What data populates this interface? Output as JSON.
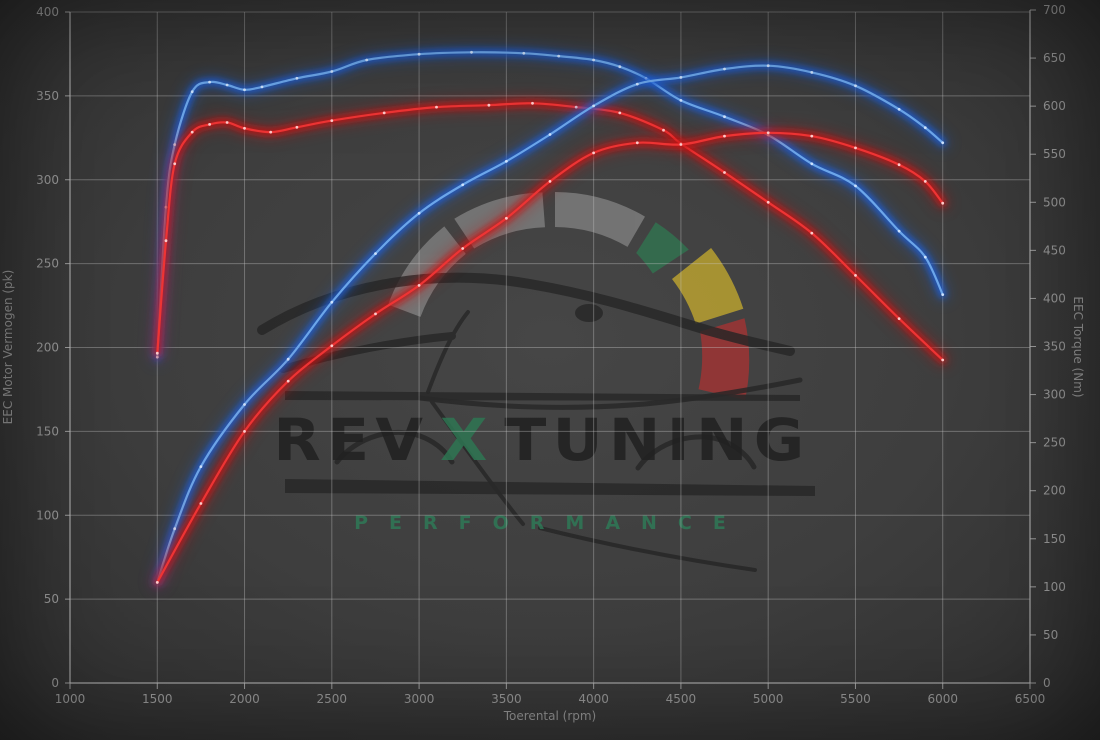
{
  "page": {
    "background": "#3e3e3e"
  },
  "axes": {
    "x": {
      "label": "Toerental (rpm)",
      "min": 1000,
      "max": 6500,
      "step": 500
    },
    "y_left": {
      "label": "EEC Motor Vermogen (pk)",
      "min": 0,
      "max": 400,
      "step": 50
    },
    "y_right": {
      "label": "EEC Torque (Nm)",
      "min": 0,
      "max": 700,
      "step": 50
    }
  },
  "chart_data": {
    "type": "line",
    "title": "",
    "xlabel": "Toerental (rpm)",
    "ylabel_left": "EEC Motor Vermogen (pk)",
    "ylabel_right": "EEC Torque (Nm)",
    "x_range": [
      1000,
      6500
    ],
    "y_left_range": [
      0,
      400
    ],
    "y_right_range": [
      0,
      700
    ],
    "grid": true,
    "legend_position": "none",
    "series": [
      {
        "name": "blue_torque_nm",
        "color": "blue",
        "axis": "right",
        "unit": "Nm",
        "points": [
          [
            1500,
            339
          ],
          [
            1550,
            495
          ],
          [
            1600,
            560
          ],
          [
            1700,
            615
          ],
          [
            1800,
            625
          ],
          [
            1900,
            622
          ],
          [
            2000,
            617
          ],
          [
            2100,
            620
          ],
          [
            2300,
            629
          ],
          [
            2500,
            636
          ],
          [
            2700,
            648
          ],
          [
            3000,
            654
          ],
          [
            3300,
            656
          ],
          [
            3600,
            655
          ],
          [
            3800,
            652
          ],
          [
            4000,
            648
          ],
          [
            4150,
            641
          ],
          [
            4300,
            629
          ],
          [
            4500,
            606
          ],
          [
            4750,
            589
          ],
          [
            5000,
            570
          ],
          [
            5250,
            540
          ],
          [
            5500,
            517
          ],
          [
            5750,
            470
          ],
          [
            5900,
            443
          ],
          [
            6000,
            404
          ]
        ]
      },
      {
        "name": "red_torque_nm",
        "color": "red",
        "axis": "right",
        "unit": "Nm",
        "points": [
          [
            1500,
            343
          ],
          [
            1550,
            460
          ],
          [
            1600,
            540
          ],
          [
            1700,
            573
          ],
          [
            1800,
            581
          ],
          [
            1900,
            583
          ],
          [
            2000,
            577
          ],
          [
            2150,
            573
          ],
          [
            2300,
            578
          ],
          [
            2500,
            585
          ],
          [
            2800,
            593
          ],
          [
            3100,
            599
          ],
          [
            3400,
            601
          ],
          [
            3650,
            603
          ],
          [
            3900,
            599
          ],
          [
            4150,
            593
          ],
          [
            4400,
            575
          ],
          [
            4500,
            561
          ],
          [
            4750,
            531
          ],
          [
            5000,
            500
          ],
          [
            5250,
            468
          ],
          [
            5500,
            424
          ],
          [
            5750,
            379
          ],
          [
            6000,
            336
          ]
        ]
      },
      {
        "name": "blue_power_pk",
        "color": "blue",
        "axis": "left",
        "unit": "pk",
        "points": [
          [
            1500,
            60
          ],
          [
            1600,
            92
          ],
          [
            1750,
            129
          ],
          [
            2000,
            166
          ],
          [
            2250,
            193
          ],
          [
            2500,
            227
          ],
          [
            2750,
            256
          ],
          [
            3000,
            280
          ],
          [
            3250,
            297
          ],
          [
            3500,
            311
          ],
          [
            3750,
            327
          ],
          [
            4000,
            344
          ],
          [
            4250,
            357
          ],
          [
            4500,
            361
          ],
          [
            4750,
            366
          ],
          [
            5000,
            368
          ],
          [
            5250,
            364
          ],
          [
            5500,
            356
          ],
          [
            5750,
            342
          ],
          [
            5900,
            331
          ],
          [
            6000,
            322
          ]
        ]
      },
      {
        "name": "red_power_pk",
        "color": "red",
        "axis": "left",
        "unit": "pk",
        "points": [
          [
            1500,
            60
          ],
          [
            1750,
            107
          ],
          [
            2000,
            150
          ],
          [
            2250,
            180
          ],
          [
            2500,
            201
          ],
          [
            2750,
            220
          ],
          [
            3000,
            237
          ],
          [
            3250,
            259
          ],
          [
            3500,
            277
          ],
          [
            3750,
            299
          ],
          [
            4000,
            316
          ],
          [
            4250,
            322
          ],
          [
            4500,
            321
          ],
          [
            4750,
            326
          ],
          [
            5000,
            328
          ],
          [
            5250,
            326
          ],
          [
            5500,
            319
          ],
          [
            5750,
            309
          ],
          [
            5900,
            299
          ],
          [
            6000,
            286
          ]
        ]
      }
    ]
  },
  "watermark": {
    "brand_left": "REV",
    "brand_x": "X",
    "brand_right": "TUNING",
    "subtitle": "PERFORMANCE"
  },
  "colors": {
    "blue_core": "#6ca6ea",
    "blue_glow": "#1d5ed8",
    "blue_dot": "#d8e9ff",
    "red_core": "#ee3434",
    "red_glow": "#c81212",
    "red_dot": "#ffdada",
    "grid": "#9a9a9a",
    "text": "#9b9b9b",
    "green_accent": "#2e7652"
  }
}
